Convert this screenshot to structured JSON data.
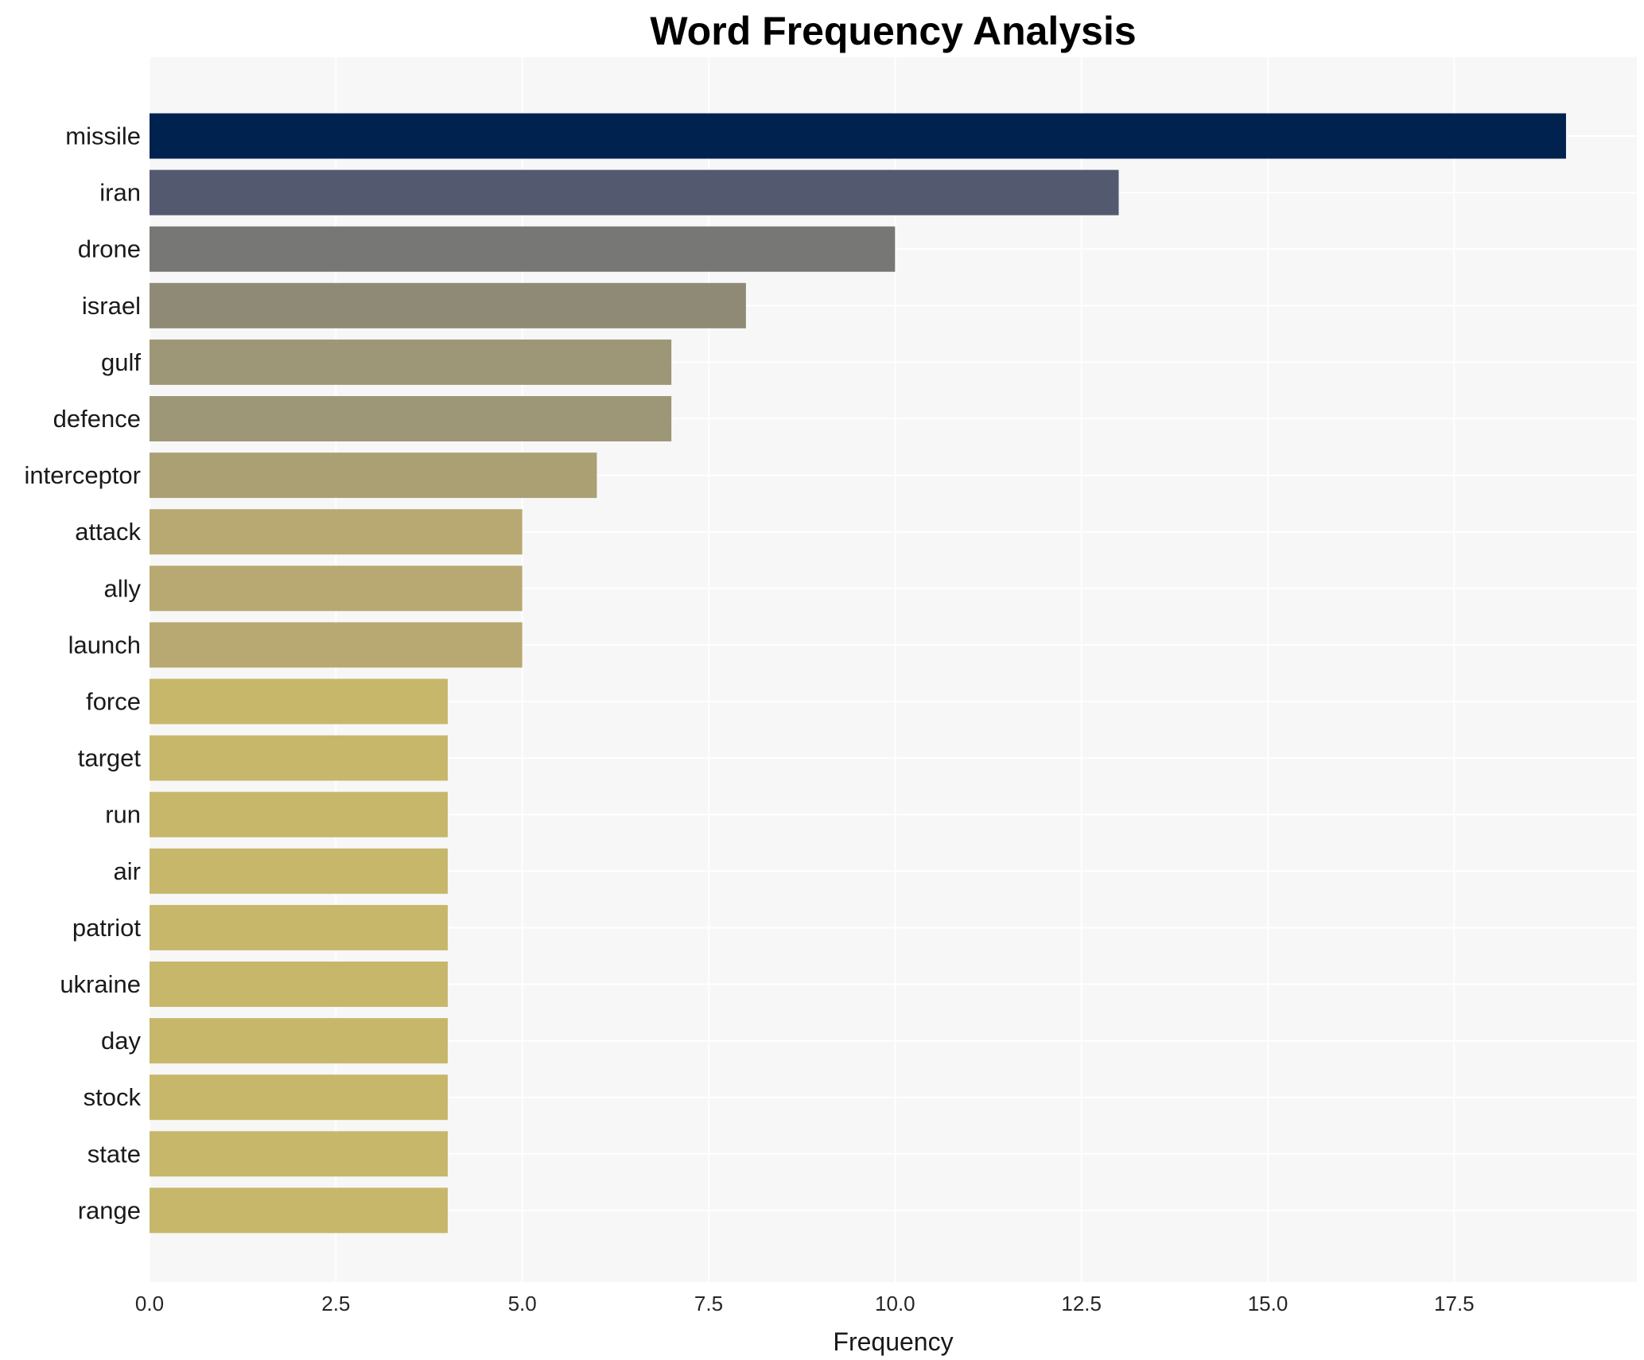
{
  "chart_data": {
    "type": "bar",
    "orientation": "horizontal",
    "title": "Word Frequency Analysis",
    "xlabel": "Frequency",
    "ylabel": "",
    "xlim": [
      0,
      19.95
    ],
    "x_ticks": [
      "0.0",
      "2.5",
      "5.0",
      "7.5",
      "10.0",
      "12.5",
      "15.0",
      "17.5"
    ],
    "x_tick_values": [
      0,
      2.5,
      5,
      7.5,
      10,
      12.5,
      15,
      17.5
    ],
    "grid": true,
    "legend": "none",
    "background": "#f7f7f7",
    "categories": [
      "missile",
      "iran",
      "drone",
      "israel",
      "gulf",
      "defence",
      "interceptor",
      "attack",
      "ally",
      "launch",
      "force",
      "target",
      "run",
      "air",
      "patriot",
      "ukraine",
      "day",
      "stock",
      "state",
      "range"
    ],
    "values": [
      19,
      13,
      10,
      8,
      7,
      7,
      6,
      5,
      5,
      5,
      4,
      4,
      4,
      4,
      4,
      4,
      4,
      4,
      4,
      4
    ],
    "colors": [
      "#00224e",
      "#535a6f",
      "#777776",
      "#8f8a76",
      "#9e9777",
      "#9e9777",
      "#aaa074",
      "#b8a973",
      "#b8a973",
      "#b8a973",
      "#c6b76b",
      "#c6b76b",
      "#c6b76b",
      "#c6b76b",
      "#c6b76b",
      "#c6b76b",
      "#c6b76b",
      "#c6b76b",
      "#c6b76b",
      "#c6b76b"
    ]
  }
}
